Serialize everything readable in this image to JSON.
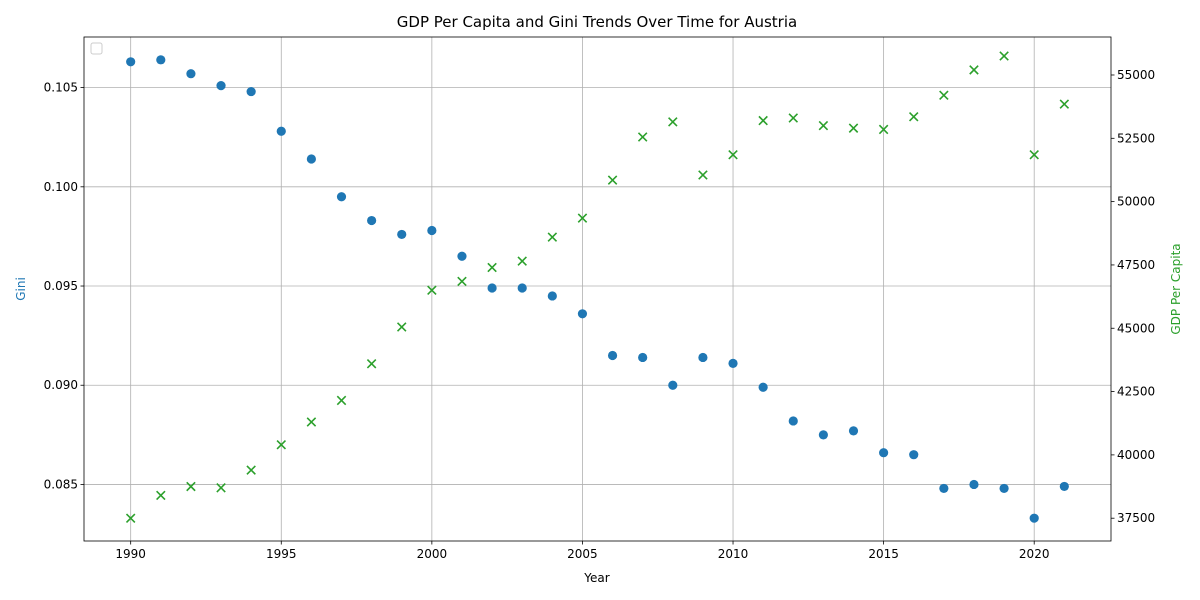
{
  "chart_data": {
    "type": "scatter",
    "title": "GDP Per Capita and Gini Trends Over Time for Austria",
    "xlabel": "Year",
    "ylabel_left": "Gini",
    "ylabel_right": "GDP Per Capita",
    "xlim": [
      1988.45,
      2022.55
    ],
    "ylim_left": [
      0.08215,
      0.10755
    ],
    "ylim_right": [
      36600,
      56500
    ],
    "x_ticks": [
      1990,
      1995,
      2000,
      2005,
      2010,
      2015,
      2020
    ],
    "y_left_ticks": [
      "0.085",
      "0.090",
      "0.095",
      "0.100",
      "0.105"
    ],
    "y_left_tick_values": [
      0.085,
      0.09,
      0.095,
      0.1,
      0.105
    ],
    "y_right_ticks": [
      "37500",
      "40000",
      "42500",
      "45000",
      "47500",
      "50000",
      "52500",
      "55000"
    ],
    "y_right_tick_values": [
      37500,
      40000,
      42500,
      45000,
      47500,
      50000,
      52500,
      55000
    ],
    "grid": true,
    "legend_position": "upper-left",
    "x": [
      1990,
      1991,
      1992,
      1993,
      1994,
      1995,
      1996,
      1997,
      1998,
      1999,
      2000,
      2001,
      2002,
      2003,
      2004,
      2005,
      2006,
      2007,
      2008,
      2009,
      2010,
      2011,
      2012,
      2013,
      2014,
      2015,
      2016,
      2017,
      2018,
      2019,
      2020,
      2021
    ],
    "series": [
      {
        "axis": "left",
        "marker": "circle",
        "color": "#1f77b4",
        "values": [
          0.1063,
          0.1064,
          0.1057,
          0.1051,
          0.1048,
          0.1028,
          0.1014,
          0.0995,
          0.0983,
          0.0976,
          0.0978,
          0.0965,
          0.0949,
          0.0949,
          0.0945,
          0.0936,
          0.0915,
          0.0914,
          0.09,
          0.0914,
          0.0911,
          0.0899,
          0.0882,
          0.0875,
          0.0877,
          0.0866,
          0.0865,
          0.0848,
          0.085,
          0.0848,
          0.0833,
          0.0849
        ]
      },
      {
        "axis": "right",
        "marker": "x",
        "color": "#2ca02c",
        "values": [
          37500,
          38400,
          38750,
          38700,
          39400,
          40400,
          41300,
          42150,
          43600,
          45050,
          46500,
          46850,
          47400,
          47650,
          48600,
          49350,
          50850,
          52550,
          53150,
          51050,
          51850,
          53200,
          53300,
          53000,
          52900,
          52850,
          53350,
          54200,
          55200,
          55750,
          51850,
          53850
        ]
      }
    ]
  }
}
